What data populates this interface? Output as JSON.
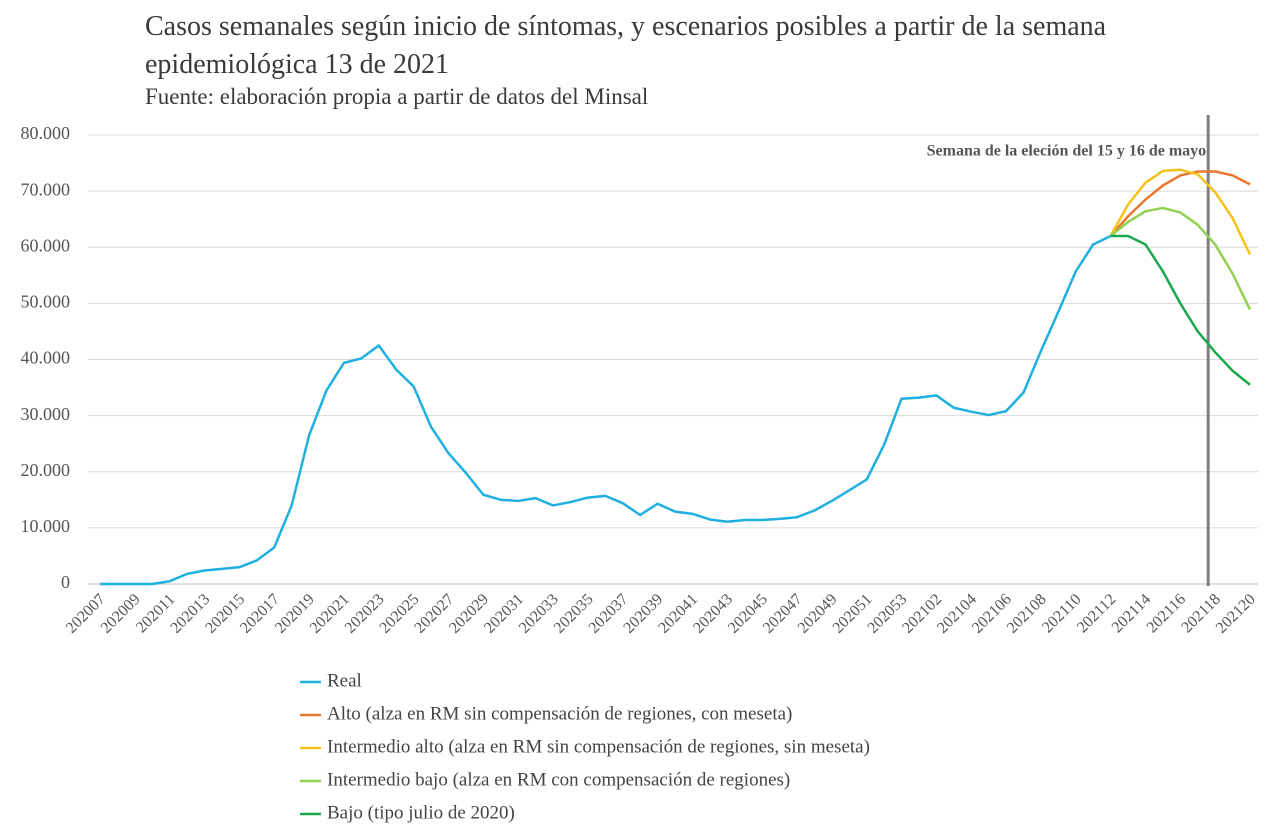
{
  "chart_data": {
    "type": "line",
    "title": "Casos semanales según inicio de síntomas, y escenarios posibles a partir de la semana epidemiológica 13  de 2021",
    "subtitle": "Fuente: elaboración propia a partir de datos del Minsal",
    "annotation": "Semana de la eleción del 15 y 16 de mayo",
    "categories": [
      "202007",
      null,
      "202009",
      null,
      "202011",
      null,
      "202013",
      null,
      "202015",
      null,
      "202017",
      null,
      "202019",
      null,
      "202021",
      null,
      "202023",
      null,
      "202025",
      null,
      "202027",
      null,
      "202029",
      null,
      "202031",
      null,
      "202033",
      null,
      "202035",
      null,
      "202037",
      null,
      "202039",
      null,
      "202041",
      null,
      "202043",
      null,
      "202045",
      null,
      "202047",
      null,
      "202049",
      null,
      "202051",
      null,
      "202053",
      null,
      "202102",
      null,
      "202104",
      null,
      "202106",
      null,
      "202108",
      null,
      "202110",
      null,
      "202112",
      null,
      "202114",
      null,
      "202116",
      null,
      "202118",
      null,
      "202120"
    ],
    "series": [
      {
        "name": "Real",
        "color": "#1fb0e0",
        "values": [
          0,
          0,
          0,
          0,
          500,
          1800,
          2400,
          2700,
          3000,
          4200,
          6500,
          14000,
          26500,
          34500,
          39400,
          40200,
          42500,
          38200,
          35200,
          28000,
          23300,
          19800,
          15900,
          15000,
          14800,
          15300,
          14000,
          14600,
          15400,
          15700,
          14400,
          12300,
          14300,
          12900,
          12500,
          11500,
          11100,
          11400,
          11400,
          11600,
          11900,
          13100,
          14800,
          16700,
          18600,
          24800,
          33000,
          33200,
          33600,
          31400,
          30700,
          30100,
          30800,
          34100,
          41500,
          48500,
          55700,
          60500,
          62000,
          null,
          null,
          null,
          null,
          null,
          null,
          null,
          null
        ]
      },
      {
        "name": "Alto (alza en RM sin compensación de regiones, con meseta)",
        "color": "#e8782f",
        "values": [
          null,
          null,
          null,
          null,
          null,
          null,
          null,
          null,
          null,
          null,
          null,
          null,
          null,
          null,
          null,
          null,
          null,
          null,
          null,
          null,
          null,
          null,
          null,
          null,
          null,
          null,
          null,
          null,
          null,
          null,
          null,
          null,
          null,
          null,
          null,
          null,
          null,
          null,
          null,
          null,
          null,
          null,
          null,
          null,
          null,
          null,
          null,
          null,
          null,
          null,
          null,
          null,
          null,
          null,
          null,
          null,
          null,
          null,
          62000,
          65500,
          68500,
          71000,
          72800,
          73500,
          73500,
          72800,
          71200
        ]
      },
      {
        "name": "Intermedio alto (alza en RM sin compensación de regiones, sin meseta)",
        "color": "#f5c21b",
        "values": [
          null,
          null,
          null,
          null,
          null,
          null,
          null,
          null,
          null,
          null,
          null,
          null,
          null,
          null,
          null,
          null,
          null,
          null,
          null,
          null,
          null,
          null,
          null,
          null,
          null,
          null,
          null,
          null,
          null,
          null,
          null,
          null,
          null,
          null,
          null,
          null,
          null,
          null,
          null,
          null,
          null,
          null,
          null,
          null,
          null,
          null,
          null,
          null,
          null,
          null,
          null,
          null,
          null,
          null,
          null,
          null,
          null,
          null,
          62000,
          67600,
          71500,
          73600,
          73800,
          73000,
          69800,
          65200,
          58700
        ]
      },
      {
        "name": "Intermedio bajo (alza en RM con compensación de regiones)",
        "color": "#92d050",
        "values": [
          null,
          null,
          null,
          null,
          null,
          null,
          null,
          null,
          null,
          null,
          null,
          null,
          null,
          null,
          null,
          null,
          null,
          null,
          null,
          null,
          null,
          null,
          null,
          null,
          null,
          null,
          null,
          null,
          null,
          null,
          null,
          null,
          null,
          null,
          null,
          null,
          null,
          null,
          null,
          null,
          null,
          null,
          null,
          null,
          null,
          null,
          null,
          null,
          null,
          null,
          null,
          null,
          null,
          null,
          null,
          null,
          null,
          null,
          62000,
          64500,
          66400,
          67000,
          66200,
          64000,
          60500,
          55300,
          48900
        ]
      },
      {
        "name": "Bajo (tipo julio de 2020)",
        "color": "#1aa84a",
        "values": [
          null,
          null,
          null,
          null,
          null,
          null,
          null,
          null,
          null,
          null,
          null,
          null,
          null,
          null,
          null,
          null,
          null,
          null,
          null,
          null,
          null,
          null,
          null,
          null,
          null,
          null,
          null,
          null,
          null,
          null,
          null,
          null,
          null,
          null,
          null,
          null,
          null,
          null,
          null,
          null,
          null,
          null,
          null,
          null,
          null,
          null,
          null,
          null,
          null,
          null,
          null,
          null,
          null,
          null,
          null,
          null,
          null,
          null,
          62000,
          62000,
          60500,
          55700,
          50000,
          45000,
          41300,
          38000,
          35500
        ]
      }
    ],
    "ylim": [
      0,
      80000
    ],
    "yticks": [
      0,
      {
        "value": 10000,
        "label": "10.000"
      },
      {
        "value": 20000,
        "label": "20.000"
      },
      {
        "value": 30000,
        "label": "30.000"
      },
      {
        "value": 40000,
        "label": "40.000"
      },
      {
        "value": 50000,
        "label": "50.000"
      },
      {
        "value": 60000,
        "label": "60.000"
      },
      {
        "value": 70000,
        "label": "70.000"
      },
      {
        "value": 80000,
        "label": "80.000"
      }
    ],
    "grid": true,
    "legend": "bottom"
  }
}
